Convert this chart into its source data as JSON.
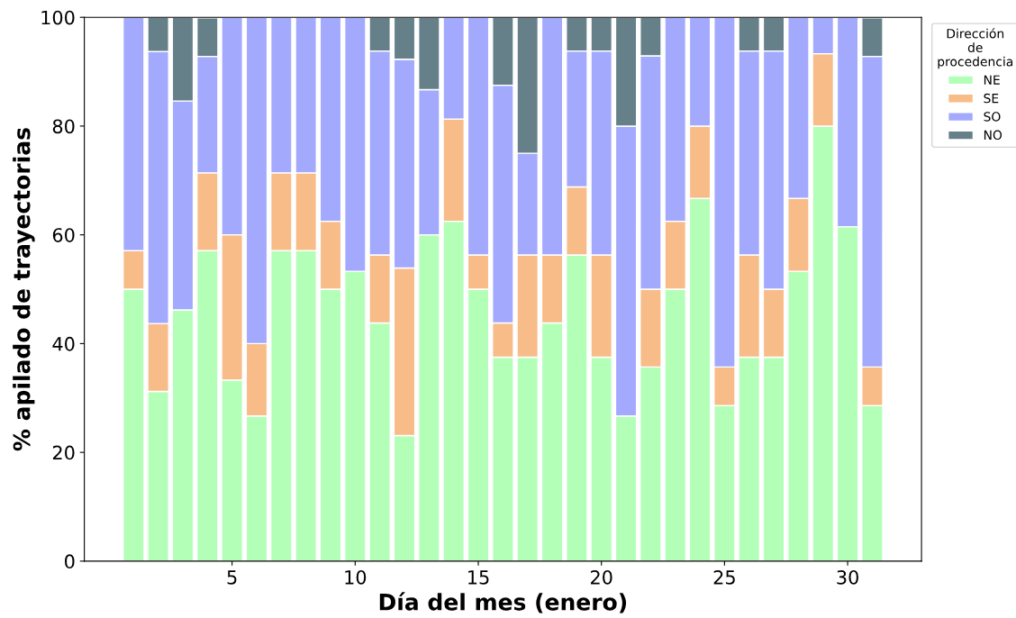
{
  "chart_data": {
    "type": "bar",
    "stacked": true,
    "xlabel": "Día del mes (enero)",
    "ylabel": "% apilado de trayectorias",
    "legend_title": "Dirección\nde\nprocedencia",
    "legend": "top right",
    "x": [
      1,
      2,
      3,
      4,
      5,
      6,
      7,
      8,
      9,
      10,
      11,
      12,
      13,
      14,
      15,
      16,
      17,
      18,
      19,
      20,
      21,
      22,
      23,
      24,
      25,
      26,
      27,
      28,
      29,
      30,
      31
    ],
    "xlim": [
      -1,
      33
    ],
    "xticks": [
      5,
      10,
      15,
      20,
      25,
      30
    ],
    "ylim": [
      0,
      100
    ],
    "yticks": [
      0,
      20,
      40,
      60,
      80,
      100
    ],
    "grid": false,
    "series": [
      {
        "name": "NE",
        "color": "#b3ffb8",
        "values": [
          50,
          31.2,
          46.2,
          57.1,
          33.3,
          26.7,
          57.1,
          57.1,
          50,
          53.3,
          43.8,
          23.1,
          60,
          62.5,
          50,
          37.5,
          37.5,
          43.8,
          56.3,
          37.5,
          26.7,
          35.7,
          50,
          66.7,
          28.6,
          37.5,
          37.5,
          53.3,
          80,
          61.5,
          28.6
        ]
      },
      {
        "name": "SE",
        "color": "#f8bc88",
        "values": [
          7.1,
          12.5,
          0,
          14.3,
          26.7,
          13.3,
          14.3,
          14.3,
          12.5,
          0,
          12.5,
          30.8,
          0,
          18.8,
          6.3,
          6.3,
          18.8,
          12.5,
          12.5,
          18.8,
          0,
          14.3,
          12.5,
          13.3,
          7.1,
          18.8,
          12.5,
          13.4,
          13.3,
          0,
          7.1
        ]
      },
      {
        "name": "SO",
        "color": "#a3a9fd",
        "values": [
          42.9,
          50,
          38.4,
          21.4,
          40,
          60,
          28.6,
          28.6,
          37.5,
          46.7,
          37.5,
          38.4,
          26.7,
          18.7,
          43.7,
          43.7,
          18.7,
          43.7,
          25,
          37.5,
          53.3,
          42.9,
          37.5,
          20,
          64.3,
          37.5,
          43.8,
          33.3,
          6.7,
          38.5,
          57.1
        ]
      },
      {
        "name": "NO",
        "color": "#66808a",
        "values": [
          0,
          6.3,
          15.4,
          7.1,
          0,
          0,
          0,
          0,
          0,
          0,
          6.2,
          7.7,
          13.3,
          0,
          0,
          12.5,
          25,
          0,
          6.2,
          6.2,
          20,
          7.1,
          0,
          0,
          0,
          6.2,
          6.2,
          0,
          0,
          0,
          7.1
        ]
      }
    ]
  }
}
